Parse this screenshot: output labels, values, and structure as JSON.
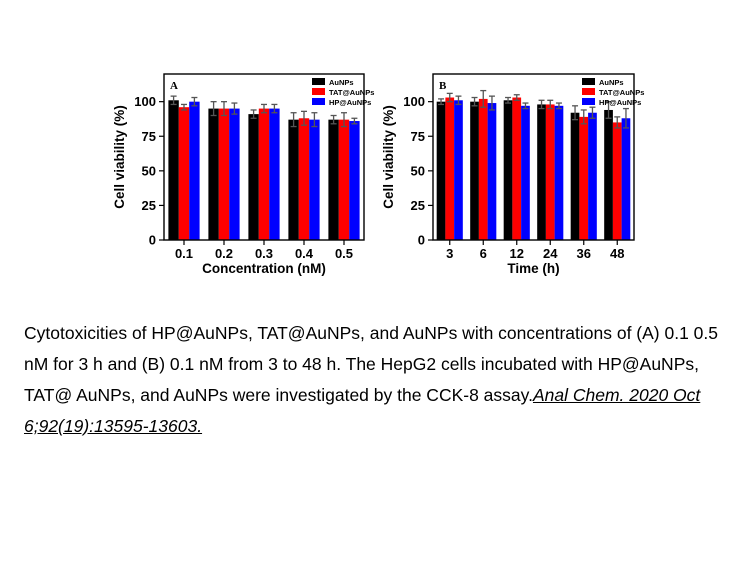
{
  "colors": {
    "AuNPs": "#000000",
    "TAT@AuNPs": "#ff0000",
    "HP@AuNPs": "#0000ff"
  },
  "chart_data": [
    {
      "type": "bar",
      "panel_label": "A",
      "xlabel": "Concentration (nM)",
      "ylabel": "Cell viability (%)",
      "categories": [
        "0.1",
        "0.2",
        "0.3",
        "0.4",
        "0.5"
      ],
      "ylim": [
        0,
        100
      ],
      "yticks": [
        "0",
        "25",
        "50",
        "75",
        "100"
      ],
      "legend_position": "top-right",
      "series": [
        {
          "name": "AuNPs",
          "values": [
            101,
            95,
            91,
            87,
            87
          ],
          "errors": [
            3,
            5,
            3,
            5,
            3
          ]
        },
        {
          "name": "TAT@AuNPs",
          "values": [
            96,
            95,
            95,
            88,
            87
          ],
          "errors": [
            2,
            5,
            3,
            5,
            5
          ]
        },
        {
          "name": "HP@AuNPs",
          "values": [
            100,
            95,
            95,
            87,
            86
          ],
          "errors": [
            3,
            4,
            3,
            5,
            2
          ]
        }
      ]
    },
    {
      "type": "bar",
      "panel_label": "B",
      "xlabel": "Time (h)",
      "ylabel": "Cell viability (%)",
      "categories": [
        "3",
        "6",
        "12",
        "24",
        "36",
        "48"
      ],
      "ylim": [
        0,
        100
      ],
      "yticks": [
        "0",
        "25",
        "50",
        "75",
        "100"
      ],
      "legend_position": "top-right",
      "series": [
        {
          "name": "AuNPs",
          "values": [
            100,
            100,
            101,
            98,
            92,
            94
          ],
          "errors": [
            2,
            3,
            2,
            3,
            5,
            6
          ]
        },
        {
          "name": "TAT@AuNPs",
          "values": [
            103,
            102,
            103,
            98,
            89,
            85
          ],
          "errors": [
            3,
            6,
            2,
            3,
            5,
            4
          ]
        },
        {
          "name": "HP@AuNPs",
          "values": [
            101,
            99,
            97,
            97,
            92,
            88
          ],
          "errors": [
            3,
            5,
            2,
            2,
            4,
            7
          ]
        }
      ]
    }
  ],
  "caption": {
    "text": "Cytotoxicities of HP@AuNPs, TAT@AuNPs, and AuNPs with concentrations of (A) 0.1 0.5 nM for 3 h and (B) 0.1 nM from 3 to 48 h. The HepG2 cells incubated with HP@AuNPs, TAT@ AuNPs, and AuNPs were investigated by the CCK-8 assay.",
    "citation": "Anal Chem. 2020 Oct 6;92(19):13595-13603."
  }
}
